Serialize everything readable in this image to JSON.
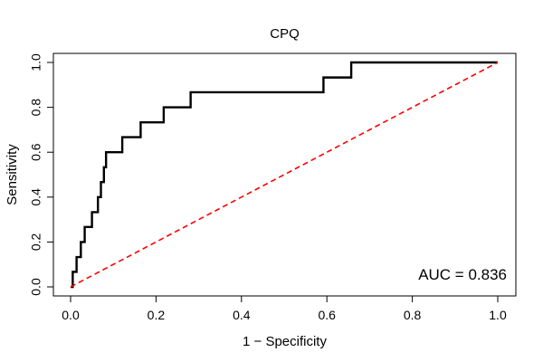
{
  "chart_data": {
    "type": "line",
    "title": "CPQ",
    "xlabel": "1 − Specificity",
    "ylabel": "Sensitivity",
    "xlim": [
      0,
      1
    ],
    "ylim": [
      0,
      1
    ],
    "x_ticks": [
      "0.0",
      "0.2",
      "0.4",
      "0.6",
      "0.8",
      "1.0"
    ],
    "y_ticks": [
      "0.0",
      "0.2",
      "0.4",
      "0.6",
      "0.8",
      "1.0"
    ],
    "grid": false,
    "legend": "none",
    "series": [
      {
        "style": "step",
        "color": "#000000",
        "points": [
          [
            0.0,
            0.0
          ],
          [
            0.0,
            0.0
          ],
          [
            0.005,
            0.0
          ],
          [
            0.005,
            0.067
          ],
          [
            0.014,
            0.067
          ],
          [
            0.014,
            0.133
          ],
          [
            0.024,
            0.133
          ],
          [
            0.024,
            0.2
          ],
          [
            0.033,
            0.2
          ],
          [
            0.033,
            0.267
          ],
          [
            0.05,
            0.267
          ],
          [
            0.05,
            0.333
          ],
          [
            0.064,
            0.333
          ],
          [
            0.064,
            0.4
          ],
          [
            0.071,
            0.4
          ],
          [
            0.071,
            0.467
          ],
          [
            0.078,
            0.467
          ],
          [
            0.078,
            0.533
          ],
          [
            0.083,
            0.533
          ],
          [
            0.083,
            0.6
          ],
          [
            0.121,
            0.6
          ],
          [
            0.121,
            0.667
          ],
          [
            0.164,
            0.667
          ],
          [
            0.164,
            0.733
          ],
          [
            0.218,
            0.733
          ],
          [
            0.218,
            0.8
          ],
          [
            0.281,
            0.8
          ],
          [
            0.281,
            0.867
          ],
          [
            0.592,
            0.867
          ],
          [
            0.592,
            0.933
          ],
          [
            0.657,
            0.933
          ],
          [
            0.657,
            1.0
          ],
          [
            1.0,
            1.0
          ]
        ]
      },
      {
        "style": "dashed",
        "color": "#ff0000",
        "points": [
          [
            0,
            0
          ],
          [
            1,
            1
          ]
        ]
      }
    ],
    "annotations": [
      {
        "text": "AUC = 0.836",
        "position": "bottom-right"
      }
    ]
  }
}
